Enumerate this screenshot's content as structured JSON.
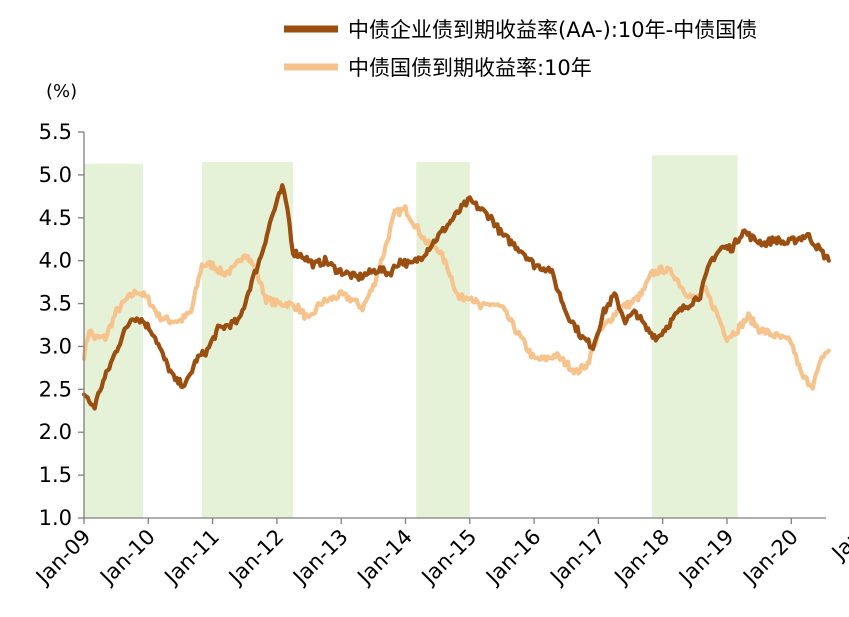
{
  "chart_data": {
    "type": "line",
    "ylabel": "(%)",
    "ylim": [
      1.0,
      5.5
    ],
    "yticks": [
      "1.0",
      "1.5",
      "2.0",
      "2.5",
      "3.0",
      "3.5",
      "4.0",
      "4.5",
      "5.0",
      "5.5"
    ],
    "xlim": [
      "2009-01",
      "2020-08"
    ],
    "xticks": [
      "Jan-09",
      "Jan-10",
      "Jan-11",
      "Jan-12",
      "Jan-13",
      "Jan-14",
      "Jan-15",
      "Jan-16",
      "Jan-17",
      "Jan-18",
      "Jan-19",
      "Jan-20",
      "Jan"
    ],
    "grid": false,
    "legend": "top",
    "shaded_periods": [
      {
        "start": "2009-01",
        "end": "2009-12",
        "ymax": 5.13
      },
      {
        "start": "2010-11",
        "end": "2012-04",
        "ymax": 5.15
      },
      {
        "start": "2014-03",
        "end": "2015-01",
        "ymax": 5.15
      },
      {
        "start": "2017-11",
        "end": "2019-03",
        "ymax": 5.23
      }
    ],
    "series": [
      {
        "name": "中债企业债到期收益率(AA-):10年-中债国债",
        "color": "#9a4e10",
        "x": [
          "2009-01",
          "2009-02",
          "2009-03",
          "2009-04",
          "2009-06",
          "2009-08",
          "2009-10",
          "2009-12",
          "2010-02",
          "2010-04",
          "2010-06",
          "2010-08",
          "2010-10",
          "2010-12",
          "2011-02",
          "2011-04",
          "2011-06",
          "2011-08",
          "2011-10",
          "2011-12",
          "2012-02",
          "2012-03",
          "2012-04",
          "2012-06",
          "2012-08",
          "2012-10",
          "2012-12",
          "2013-02",
          "2013-04",
          "2013-06",
          "2013-08",
          "2013-10",
          "2013-12",
          "2014-02",
          "2014-04",
          "2014-06",
          "2014-08",
          "2014-10",
          "2014-12",
          "2015-01",
          "2015-03",
          "2015-05",
          "2015-07",
          "2015-09",
          "2015-11",
          "2016-01",
          "2016-04",
          "2016-07",
          "2016-10",
          "2016-12",
          "2017-02",
          "2017-04",
          "2017-06",
          "2017-08",
          "2017-10",
          "2017-12",
          "2018-02",
          "2018-04",
          "2018-06",
          "2018-08",
          "2018-10",
          "2018-12",
          "2019-02",
          "2019-04",
          "2019-06",
          "2019-08",
          "2019-10",
          "2019-12",
          "2020-02",
          "2020-04",
          "2020-06",
          "2020-08"
        ],
        "values": [
          2.45,
          2.35,
          2.3,
          2.5,
          2.8,
          3.1,
          3.35,
          3.3,
          3.15,
          2.85,
          2.6,
          2.55,
          2.85,
          2.95,
          3.2,
          3.25,
          3.3,
          3.7,
          4.05,
          4.5,
          4.85,
          4.6,
          4.1,
          4.05,
          3.95,
          4.0,
          3.9,
          3.85,
          3.8,
          3.85,
          3.9,
          3.85,
          4.0,
          3.95,
          4.05,
          4.2,
          4.35,
          4.5,
          4.65,
          4.7,
          4.6,
          4.5,
          4.3,
          4.2,
          4.1,
          3.95,
          3.9,
          3.4,
          3.1,
          3.0,
          3.4,
          3.6,
          3.3,
          3.4,
          3.2,
          3.1,
          3.25,
          3.4,
          3.5,
          3.6,
          4.0,
          4.15,
          4.15,
          4.35,
          4.25,
          4.2,
          4.25,
          4.2,
          4.25,
          4.3,
          4.15,
          4.0
        ]
      },
      {
        "name": "中债国债到期收益率:10年",
        "color": "#f7c38d",
        "x": [
          "2009-01",
          "2009-02",
          "2009-03",
          "2009-05",
          "2009-07",
          "2009-09",
          "2009-11",
          "2010-01",
          "2010-03",
          "2010-05",
          "2010-07",
          "2010-09",
          "2010-11",
          "2011-01",
          "2011-03",
          "2011-05",
          "2011-07",
          "2011-09",
          "2011-11",
          "2012-01",
          "2012-03",
          "2012-05",
          "2012-07",
          "2012-09",
          "2012-11",
          "2013-01",
          "2013-03",
          "2013-05",
          "2013-07",
          "2013-09",
          "2013-11",
          "2014-01",
          "2014-03",
          "2014-05",
          "2014-07",
          "2014-09",
          "2014-11",
          "2015-01",
          "2015-03",
          "2015-05",
          "2015-07",
          "2015-09",
          "2015-11",
          "2016-01",
          "2016-03",
          "2016-05",
          "2016-07",
          "2016-09",
          "2016-11",
          "2017-01",
          "2017-03",
          "2017-05",
          "2017-07",
          "2017-09",
          "2017-11",
          "2018-01",
          "2018-03",
          "2018-05",
          "2018-07",
          "2018-09",
          "2018-11",
          "2019-01",
          "2019-03",
          "2019-05",
          "2019-07",
          "2019-09",
          "2019-11",
          "2020-01",
          "2020-03",
          "2020-05",
          "2020-07",
          "2020-08"
        ],
        "values": [
          2.9,
          3.2,
          3.1,
          3.1,
          3.4,
          3.55,
          3.65,
          3.55,
          3.35,
          3.3,
          3.3,
          3.4,
          3.95,
          3.95,
          3.85,
          3.9,
          4.1,
          3.9,
          3.55,
          3.5,
          3.5,
          3.45,
          3.3,
          3.5,
          3.55,
          3.6,
          3.55,
          3.45,
          3.7,
          4.1,
          4.55,
          4.6,
          4.4,
          4.2,
          4.15,
          3.9,
          3.55,
          3.6,
          3.45,
          3.5,
          3.45,
          3.25,
          3.05,
          2.85,
          2.85,
          2.9,
          2.8,
          2.7,
          2.8,
          3.15,
          3.3,
          3.45,
          3.5,
          3.6,
          3.85,
          3.9,
          3.85,
          3.65,
          3.55,
          3.65,
          3.4,
          3.1,
          3.2,
          3.35,
          3.2,
          3.15,
          3.1,
          3.05,
          2.65,
          2.55,
          2.9,
          2.95
        ]
      }
    ]
  }
}
